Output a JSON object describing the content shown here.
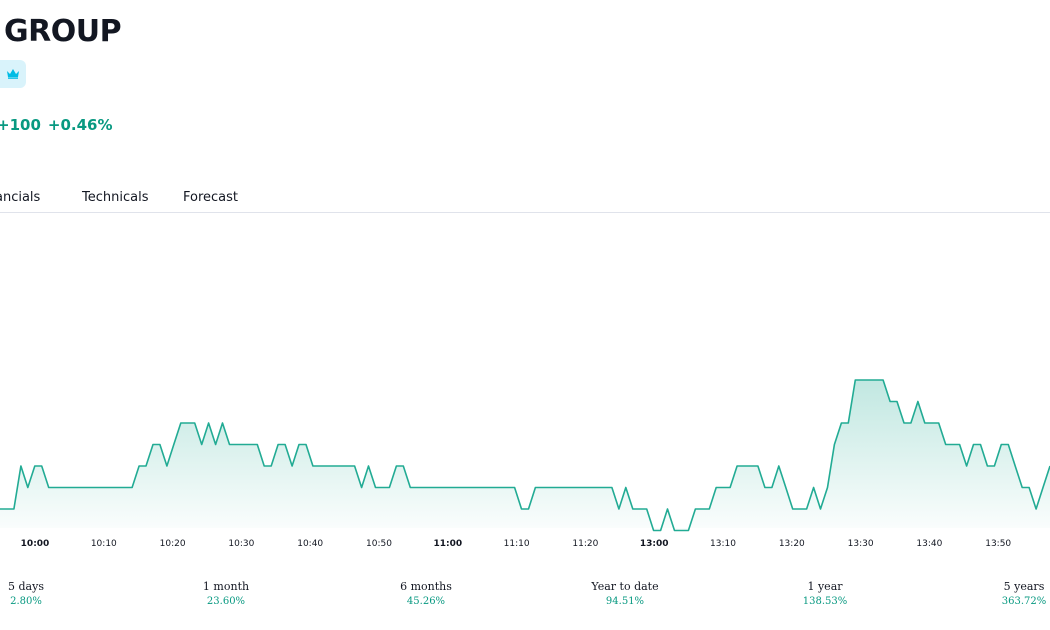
{
  "header": {
    "title": "GROUP",
    "change_abs": "+100",
    "change_pct": "+0.46%"
  },
  "tabs": [
    "ancials",
    "Technicals",
    "Forecast"
  ],
  "colors": {
    "line": "#22ab94",
    "positive": "#089981",
    "badge_bg": "#d9f3fb",
    "badge_icon": "#00bce5"
  },
  "chart_data": {
    "type": "area",
    "xlabel": "",
    "ylabel": "",
    "x_ticks": [
      {
        "label": "10:00",
        "major": true
      },
      {
        "label": "10:10",
        "major": false
      },
      {
        "label": "10:20",
        "major": false
      },
      {
        "label": "10:30",
        "major": false
      },
      {
        "label": "10:40",
        "major": false
      },
      {
        "label": "10:50",
        "major": false
      },
      {
        "label": "11:00",
        "major": true
      },
      {
        "label": "11:10",
        "major": false
      },
      {
        "label": "11:20",
        "major": false
      },
      {
        "label": "13:00",
        "major": true
      },
      {
        "label": "13:10",
        "major": false
      },
      {
        "label": "13:20",
        "major": false
      },
      {
        "label": "13:30",
        "major": false
      },
      {
        "label": "13:40",
        "major": false
      },
      {
        "label": "13:50",
        "major": false
      }
    ],
    "series": [
      {
        "values": [
          0,
          0,
          0,
          2,
          1,
          2,
          2,
          1,
          1,
          1,
          1,
          1,
          1,
          1,
          1,
          1,
          1,
          1,
          1,
          1,
          2,
          2,
          3,
          3,
          2,
          3,
          4,
          4,
          4,
          3,
          4,
          3,
          4,
          3,
          3,
          3,
          3,
          3,
          2,
          2,
          3,
          3,
          2,
          3,
          3,
          2,
          2,
          2,
          2,
          2,
          2,
          2,
          1,
          2,
          1,
          1,
          1,
          2,
          2,
          1,
          1,
          1,
          1,
          1,
          1,
          1,
          1,
          1,
          1,
          1,
          1,
          1,
          1,
          1,
          1,
          0,
          0,
          1,
          1,
          1,
          1,
          1,
          1,
          1,
          1,
          1,
          1,
          1,
          1,
          0,
          1,
          0,
          0,
          0,
          -1,
          -1,
          0,
          -1,
          -1,
          -1,
          0,
          0,
          0,
          1,
          1,
          1,
          2,
          2,
          2,
          2,
          1,
          1,
          2,
          1,
          0,
          0,
          0,
          1,
          0,
          1,
          3,
          4,
          4,
          6,
          6,
          6,
          6,
          6,
          5,
          5,
          4,
          4,
          5,
          4,
          4,
          4,
          3,
          3,
          3,
          2,
          3,
          3,
          2,
          2,
          3,
          3,
          2,
          1,
          1,
          0,
          1,
          2
        ]
      }
    ]
  },
  "performance": [
    {
      "label": "5 days",
      "value": "2.80%"
    },
    {
      "label": "1 month",
      "value": "23.60%"
    },
    {
      "label": "6 months",
      "value": "45.26%"
    },
    {
      "label": "Year to date",
      "value": "94.51%"
    },
    {
      "label": "1 year",
      "value": "138.53%"
    },
    {
      "label": "5 years",
      "value": "363.72%"
    }
  ]
}
